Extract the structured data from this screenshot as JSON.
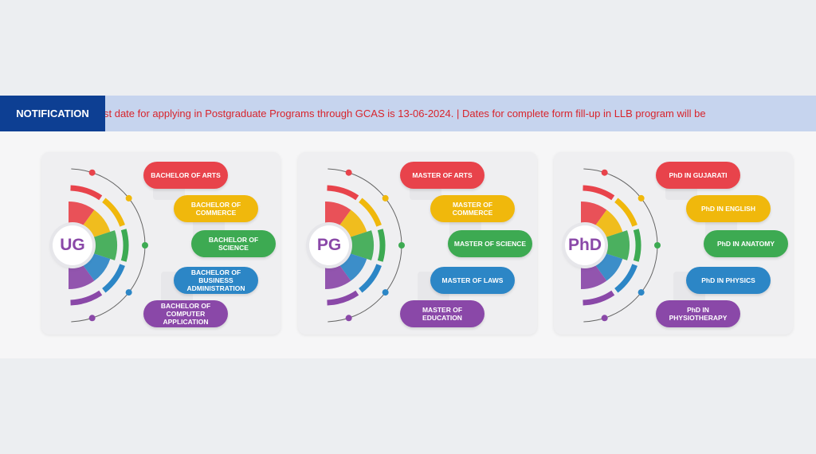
{
  "notification": {
    "label": "NOTIFICATION",
    "text": "st date for applying in Postgraduate Programs through GCAS is 13-06-2024.   |   Dates for complete form fill-up in LLB program will be"
  },
  "colors": {
    "red": "#e8434b",
    "yellow": "#f0b80c",
    "green": "#3daa52",
    "blue": "#2c86c6",
    "purple": "#8a48a8",
    "notification_bg": "#0d3f93",
    "ticker_text": "#d8242c"
  },
  "cards": [
    {
      "badge": "UG",
      "badge_color": "#8a48a8",
      "programs": [
        {
          "label": "BACHELOR OF ARTS",
          "color": "red"
        },
        {
          "label": "BACHELOR OF COMMERCE",
          "color": "yellow"
        },
        {
          "label": "BACHELOR OF SCIENCE",
          "color": "green"
        },
        {
          "label": "BACHELOR OF BUSINESS ADMINISTRATION",
          "color": "blue"
        },
        {
          "label": "BACHELOR OF COMPUTER APPLICATION",
          "color": "purple"
        }
      ]
    },
    {
      "badge": "PG",
      "badge_color": "#8a48a8",
      "programs": [
        {
          "label": "MASTER OF ARTS",
          "color": "red"
        },
        {
          "label": "MASTER OF COMMERCE",
          "color": "yellow"
        },
        {
          "label": "MASTER OF SCIENCE",
          "color": "green"
        },
        {
          "label": "MASTER OF LAWS",
          "color": "blue"
        },
        {
          "label": "MASTER OF EDUCATION",
          "color": "purple"
        }
      ]
    },
    {
      "badge": "PhD",
      "badge_color": "#8a48a8",
      "programs": [
        {
          "label": "PhD IN GUJARATI",
          "color": "red"
        },
        {
          "label": "PhD IN ENGLISH",
          "color": "yellow"
        },
        {
          "label": "PhD IN ANATOMY",
          "color": "green"
        },
        {
          "label": "PhD IN PHYSICS",
          "color": "blue"
        },
        {
          "label": "PhD IN PHYSIOTHERAPY",
          "color": "purple"
        }
      ]
    }
  ]
}
